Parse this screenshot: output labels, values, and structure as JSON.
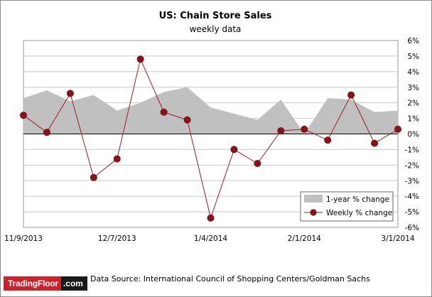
{
  "chart_data": {
    "type": "line",
    "title": "US: Chain Store Sales",
    "subtitle": "weekly data",
    "x_tick_labels": [
      "11/9/2013",
      "12/7/2013",
      "1/4/2014",
      "2/1/2014",
      "3/1/2014"
    ],
    "y_tick_labels": [
      "6%",
      "5%",
      "4%",
      "3%",
      "2%",
      "1%",
      "0%",
      "-1%",
      "-2%",
      "-3%",
      "-4%",
      "-5%",
      "-6%"
    ],
    "ylim": [
      -6,
      6
    ],
    "y_axis_side": "right",
    "grid": true,
    "legend_position": "bottom-right",
    "x": [
      "11/9/2013",
      "11/16/2013",
      "11/23/2013",
      "11/30/2013",
      "12/7/2013",
      "12/14/2013",
      "12/21/2013",
      "12/28/2013",
      "1/4/2014",
      "1/11/2014",
      "1/18/2014",
      "1/25/2014",
      "2/1/2014",
      "2/8/2014",
      "2/15/2014",
      "2/22/2014",
      "3/1/2014"
    ],
    "series": [
      {
        "name": "1-year % change",
        "style": "area",
        "color": "#c0c0c0",
        "values": [
          2.3,
          2.8,
          2.1,
          2.5,
          1.5,
          2.0,
          2.7,
          3.0,
          1.7,
          1.3,
          0.9,
          2.2,
          0.0,
          2.3,
          2.2,
          1.4,
          1.5
        ]
      },
      {
        "name": "Weekly % change",
        "style": "line-marker",
        "color": "#9e1d23",
        "values": [
          1.2,
          0.1,
          2.6,
          -2.8,
          -1.6,
          4.8,
          1.4,
          0.9,
          -5.4,
          -1.0,
          -1.9,
          0.2,
          0.3,
          -0.4,
          2.5,
          -0.6,
          0.3
        ]
      }
    ]
  },
  "footer": {
    "logo_part1": "TradingFloor",
    "logo_part2": ".com",
    "source": "Data Source:  International Council of Shopping Centers/Goldman Sachs"
  }
}
